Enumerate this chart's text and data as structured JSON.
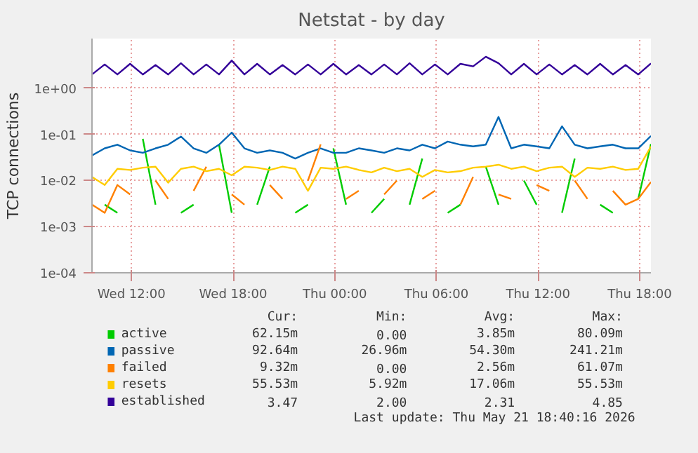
{
  "chart_data": {
    "type": "line",
    "title": "Netstat - by day",
    "ylabel": "TCP connections",
    "log": "y",
    "grid": true,
    "legend": "bottom",
    "xlim": [
      "2026-05-20T09:40",
      "2026-05-21T18:40"
    ],
    "xticks": [
      {
        "value": "2026-05-20T12:00",
        "label": "Wed 12:00"
      },
      {
        "value": "2026-05-20T18:00",
        "label": "Wed 18:00"
      },
      {
        "value": "2026-05-21T00:00",
        "label": "Thu 00:00"
      },
      {
        "value": "2026-05-21T06:00",
        "label": "Thu 06:00"
      },
      {
        "value": "2026-05-21T12:00",
        "label": "Thu 12:00"
      },
      {
        "value": "2026-05-21T18:00",
        "label": "Thu 18:00"
      }
    ],
    "ylim": [
      0.0001,
      12
    ],
    "yticks": [
      {
        "value": 1,
        "label": "1e+00"
      },
      {
        "value": 0.1,
        "label": "1e-01"
      },
      {
        "value": 0.01,
        "label": "1e-02"
      },
      {
        "value": 0.001,
        "label": "1e-03"
      },
      {
        "value": 0.0001,
        "label": "1e-04"
      }
    ],
    "x": [
      "2026-05-20T09:40",
      "2026-05-20T10:25",
      "2026-05-20T11:10",
      "2026-05-20T11:55",
      "2026-05-20T12:40",
      "2026-05-20T13:25",
      "2026-05-20T14:10",
      "2026-05-20T14:55",
      "2026-05-20T15:40",
      "2026-05-20T16:25",
      "2026-05-20T17:10",
      "2026-05-20T17:55",
      "2026-05-20T18:40",
      "2026-05-20T19:25",
      "2026-05-20T20:10",
      "2026-05-20T20:55",
      "2026-05-20T21:40",
      "2026-05-20T22:25",
      "2026-05-20T23:10",
      "2026-05-20T23:55",
      "2026-05-21T00:40",
      "2026-05-21T01:25",
      "2026-05-21T02:10",
      "2026-05-21T02:55",
      "2026-05-21T03:40",
      "2026-05-21T04:25",
      "2026-05-21T05:10",
      "2026-05-21T05:55",
      "2026-05-21T06:40",
      "2026-05-21T07:25",
      "2026-05-21T08:10",
      "2026-05-21T08:55",
      "2026-05-21T09:40",
      "2026-05-21T10:25",
      "2026-05-21T11:10",
      "2026-05-21T11:55",
      "2026-05-21T12:40",
      "2026-05-21T13:25",
      "2026-05-21T14:10",
      "2026-05-21T14:55",
      "2026-05-21T15:40",
      "2026-05-21T16:25",
      "2026-05-21T17:10",
      "2026-05-21T17:55",
      "2026-05-21T18:40"
    ],
    "series": [
      {
        "name": "active",
        "color": "#00cc00",
        "values": [
          null,
          0.003,
          0.002,
          null,
          0.08,
          0.003,
          null,
          0.002,
          0.003,
          null,
          0.06,
          0.002,
          null,
          0.003,
          0.02,
          null,
          0.002,
          0.003,
          null,
          0.05,
          0.003,
          null,
          0.002,
          0.004,
          null,
          0.003,
          0.03,
          null,
          0.002,
          0.003,
          null,
          0.02,
          0.003,
          null,
          0.01,
          0.003,
          null,
          0.002,
          0.03,
          null,
          0.003,
          0.002,
          null,
          0.004,
          0.062
        ]
      },
      {
        "name": "passive",
        "color": "#0066b3",
        "values": [
          0.035,
          0.05,
          0.06,
          0.045,
          0.04,
          0.05,
          0.06,
          0.09,
          0.05,
          0.04,
          0.06,
          0.11,
          0.05,
          0.04,
          0.045,
          0.04,
          0.03,
          0.04,
          0.05,
          0.04,
          0.04,
          0.05,
          0.045,
          0.04,
          0.05,
          0.045,
          0.06,
          0.05,
          0.07,
          0.06,
          0.055,
          0.06,
          0.24,
          0.05,
          0.06,
          0.055,
          0.05,
          0.15,
          0.06,
          0.05,
          0.055,
          0.06,
          0.05,
          0.05,
          0.093
        ]
      },
      {
        "name": "failed",
        "color": "#ff8000",
        "values": [
          0.003,
          0.002,
          0.008,
          0.005,
          null,
          0.01,
          0.004,
          null,
          0.006,
          0.02,
          null,
          0.005,
          0.003,
          null,
          0.008,
          0.004,
          null,
          0.01,
          0.061,
          null,
          0.004,
          0.006,
          null,
          0.005,
          0.01,
          null,
          0.004,
          0.006,
          null,
          0.003,
          0.012,
          null,
          0.005,
          0.004,
          null,
          0.008,
          0.006,
          null,
          0.01,
          0.004,
          null,
          0.006,
          0.003,
          0.004,
          0.0093
        ]
      },
      {
        "name": "resets",
        "color": "#ffcc00",
        "values": [
          0.012,
          0.008,
          0.018,
          0.017,
          0.019,
          0.02,
          0.009,
          0.018,
          0.02,
          0.016,
          0.018,
          0.013,
          0.02,
          0.019,
          0.017,
          0.02,
          0.018,
          0.006,
          0.019,
          0.018,
          0.02,
          0.017,
          0.015,
          0.019,
          0.016,
          0.018,
          0.012,
          0.017,
          0.015,
          0.016,
          0.019,
          0.02,
          0.022,
          0.018,
          0.02,
          0.016,
          0.019,
          0.02,
          0.012,
          0.019,
          0.018,
          0.02,
          0.017,
          0.018,
          0.055
        ]
      },
      {
        "name": "established",
        "color": "#330099",
        "values": [
          2,
          3.3,
          2,
          3.4,
          2,
          3.2,
          2,
          3.5,
          2,
          3.3,
          2,
          4,
          2,
          3.4,
          2,
          3.2,
          2,
          3.3,
          2,
          3.4,
          2,
          3.2,
          2,
          3.3,
          2,
          3.5,
          2,
          3.3,
          2,
          3.4,
          3,
          4.85,
          3.5,
          2,
          3.4,
          2,
          3.3,
          2,
          3.2,
          2,
          3.4,
          2,
          3.2,
          2,
          3.47
        ]
      }
    ],
    "annotations": [
      "Cur:",
      "Min:",
      "Avg:",
      "Max:",
      "62.15m",
      "0.00",
      "3.85m",
      "80.09m",
      "92.64m",
      "26.96m",
      "54.30m",
      "241.21m",
      "9.32m",
      "0.00",
      "2.56m",
      "61.07m",
      "55.53m",
      "5.92m",
      "17.06m",
      "55.53m",
      "3.47",
      "2.00",
      "2.31",
      "4.85",
      "Last update: Thu May 21 18:40:16 2026"
    ]
  }
}
